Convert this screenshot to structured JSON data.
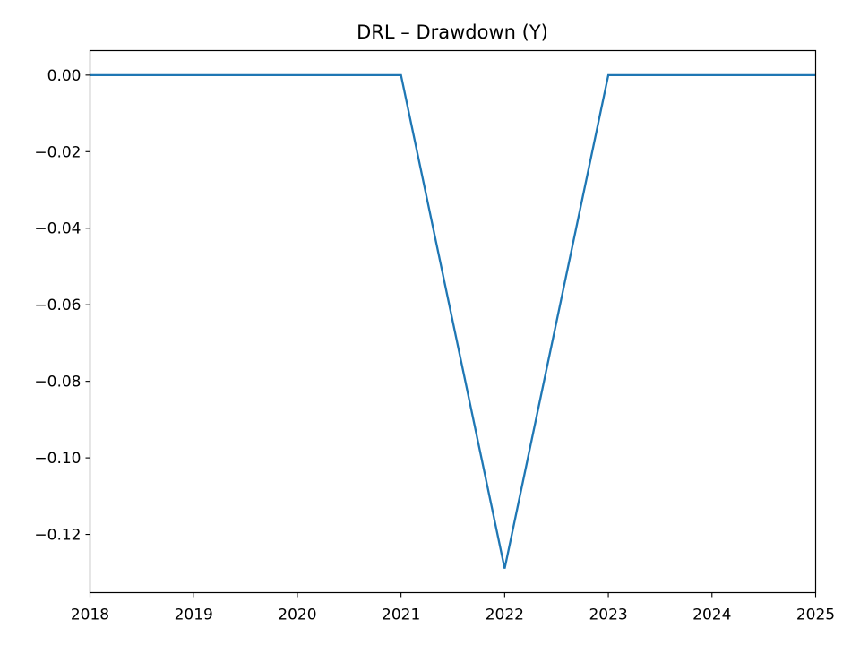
{
  "chart_data": {
    "type": "line",
    "title": "DRL – Drawdown (Y)",
    "xlabel": "",
    "ylabel": "",
    "xlim": [
      2018,
      2025
    ],
    "ylim": [
      -0.1352,
      0.0064
    ],
    "xticks": [
      "2018",
      "2019",
      "2020",
      "2021",
      "2022",
      "2023",
      "2024",
      "2025"
    ],
    "yticks": [
      "0.00",
      "−0.02",
      "−0.04",
      "−0.06",
      "−0.08",
      "−0.10",
      "−0.12"
    ],
    "grid": false,
    "legend": "none",
    "series": [
      {
        "color": "#1f77b4",
        "x": [
          2018,
          2019,
          2020,
          2021,
          2022,
          2023,
          2024,
          2025
        ],
        "y": [
          0.0,
          0.0,
          0.0,
          0.0,
          -0.1289,
          0.0,
          0.0,
          0.0
        ]
      }
    ]
  }
}
